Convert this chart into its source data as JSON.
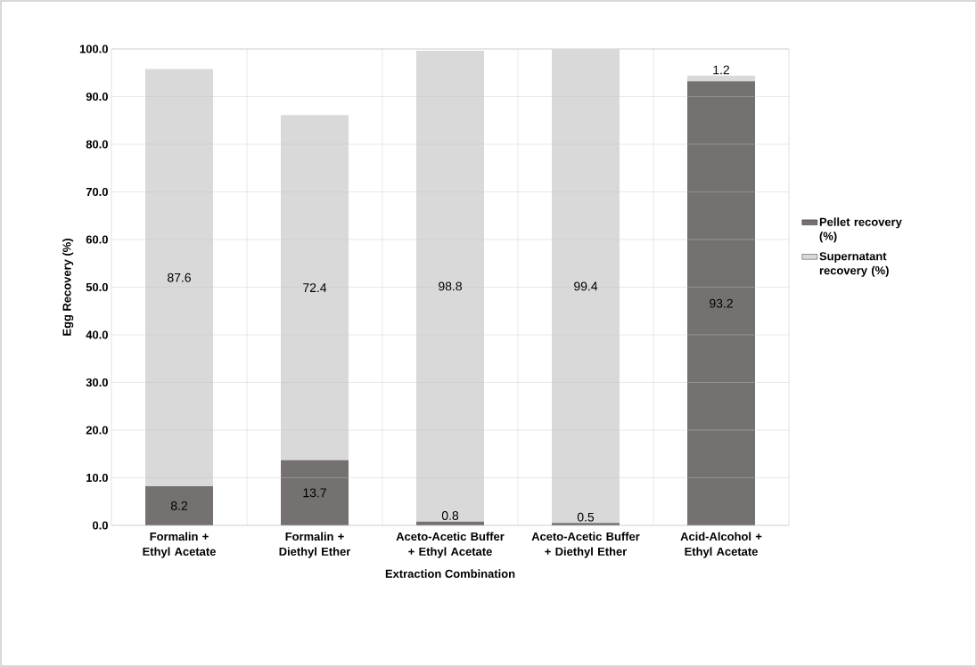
{
  "chart_data": {
    "type": "bar",
    "stacked": true,
    "xlabel": "Extraction Combination",
    "ylabel": "Egg Recovery (%)",
    "categories": [
      "Formalin + Ethyl Acetate",
      "Formalin + Diethyl Ether",
      "Aceto-Acetic Buffer + Ethyl Acetate",
      "Aceto-Acetic Buffer + Diethyl Ether",
      "Acid-Alcohol + Ethyl Acetate"
    ],
    "series": [
      {
        "name": "Pellet recovery (%)",
        "color": "#767171",
        "values": [
          8.2,
          13.7,
          0.8,
          0.5,
          93.2
        ]
      },
      {
        "name": "Supernatant recovery (%)",
        "color": "#d9d9d9",
        "values": [
          87.6,
          72.4,
          98.8,
          99.4,
          1.2
        ]
      }
    ],
    "data_labels": true,
    "ylim": [
      0,
      100
    ],
    "yticks": [
      {
        "value": 0,
        "label": "0.0"
      },
      {
        "value": 10,
        "label": "10.0"
      },
      {
        "value": 20,
        "label": "20.0"
      },
      {
        "value": 30,
        "label": "30.0"
      },
      {
        "value": 40,
        "label": "40.0"
      },
      {
        "value": 50,
        "label": "50.0"
      },
      {
        "value": 60,
        "label": "60.0"
      },
      {
        "value": 70,
        "label": "70.0"
      },
      {
        "value": 80,
        "label": "80.0"
      },
      {
        "value": 90,
        "label": "90.0"
      },
      {
        "value": 100,
        "label": "100.0"
      }
    ],
    "grid": true,
    "legend": "right"
  }
}
